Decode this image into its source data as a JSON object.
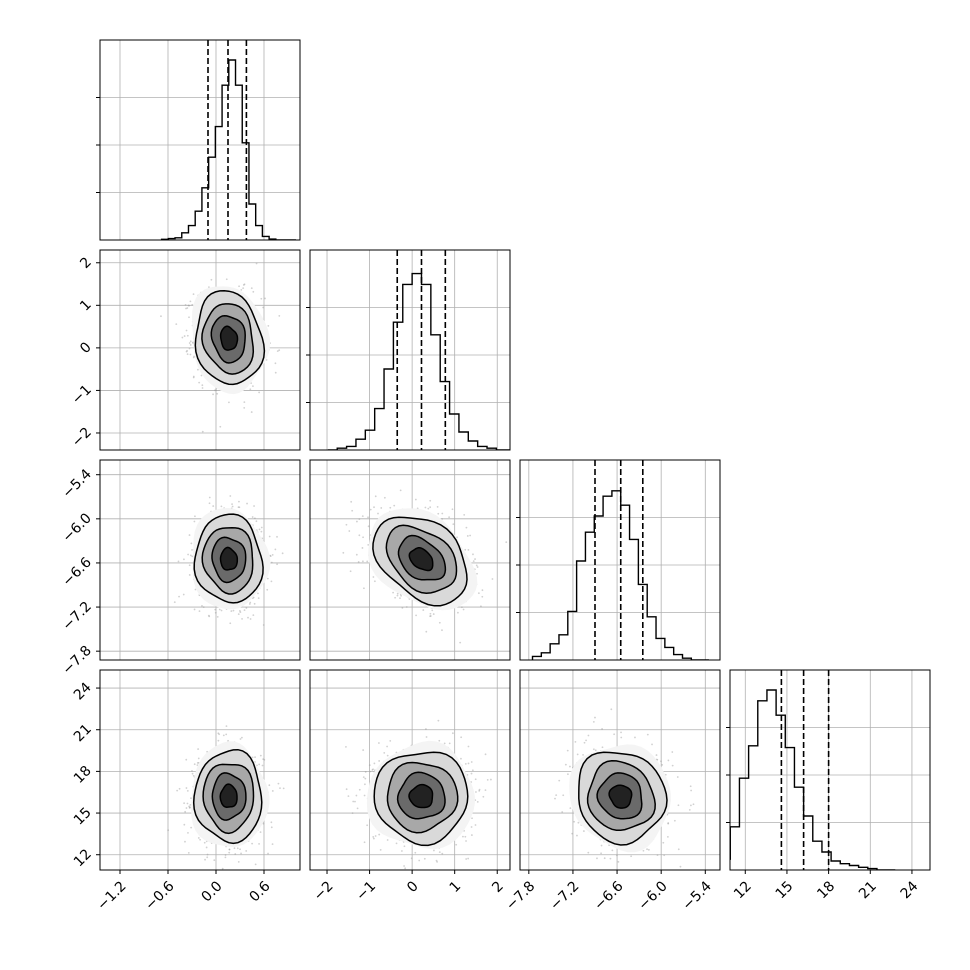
{
  "chart_data": {
    "type": "corner",
    "grid": true,
    "dimensions": [
      {
        "range": [
          -1.45,
          1.05
        ],
        "ticks": [
          "−1.2",
          "−0.6",
          "0.0",
          "0.6"
        ],
        "tick_values": [
          -1.2,
          -0.6,
          0.0,
          0.6
        ],
        "quantiles": [
          -0.1,
          0.15,
          0.38
        ],
        "mean": 0.16,
        "sd": 0.21,
        "histogram": [
          0.004,
          0.008,
          0.012,
          0.04,
          0.08,
          0.16,
          0.29,
          0.46,
          0.63,
          0.86,
          1.0,
          0.86,
          0.54,
          0.2,
          0.08,
          0.02,
          0.005,
          0.0,
          0.0,
          0.0
        ]
      },
      {
        "range": [
          -2.4,
          2.3
        ],
        "ticks": [
          "−2",
          "−1",
          "0",
          "1",
          "2"
        ],
        "tick_values": [
          -2,
          -1,
          0,
          1,
          2
        ],
        "quantiles": [
          -0.35,
          0.22,
          0.78
        ],
        "mean": 0.22,
        "sd": 0.55,
        "histogram": [
          0.0,
          0.01,
          0.02,
          0.06,
          0.11,
          0.23,
          0.45,
          0.71,
          0.92,
          0.98,
          0.92,
          0.64,
          0.38,
          0.2,
          0.1,
          0.05,
          0.02,
          0.01,
          0.0,
          0.0
        ]
      },
      {
        "range": [
          -7.92,
          -5.2
        ],
        "ticks": [
          "−7.8",
          "−7.2",
          "−6.6",
          "−6.0",
          "−5.4"
        ],
        "tick_values": [
          -7.8,
          -7.2,
          -6.6,
          -6.0,
          -5.4
        ],
        "quantiles": [
          -6.9,
          -6.55,
          -6.25
        ],
        "mean": -6.55,
        "sd": 0.3,
        "histogram": [
          0.02,
          0.04,
          0.09,
          0.14,
          0.27,
          0.55,
          0.71,
          0.8,
          0.91,
          0.94,
          0.86,
          0.67,
          0.42,
          0.24,
          0.12,
          0.07,
          0.03,
          0.01,
          0.0,
          0.0
        ]
      },
      {
        "range": [
          10.9,
          25.3
        ],
        "ticks": [
          "12",
          "15",
          "18",
          "21",
          "24"
        ],
        "tick_values": [
          12,
          15,
          18,
          21,
          24
        ],
        "quantiles": [
          14.6,
          16.2,
          18.0
        ],
        "mean": 16.2,
        "sd": 1.65,
        "histogram": [
          0.03,
          0.06,
          0.24,
          0.51,
          0.69,
          0.94,
          1.0,
          0.86,
          0.68,
          0.46,
          0.3,
          0.16,
          0.1,
          0.05,
          0.035,
          0.025,
          0.015,
          0.008,
          0.0,
          0.0
        ]
      }
    ],
    "correlations": {
      "1-0": -0.12,
      "2-0": -0.05,
      "2-1": -0.35,
      "3-0": 0.0,
      "3-1": 0.0,
      "3-2": -0.08
    },
    "contour_levels_sigma": [
      0.5,
      1.0,
      1.5,
      2.0
    ]
  }
}
